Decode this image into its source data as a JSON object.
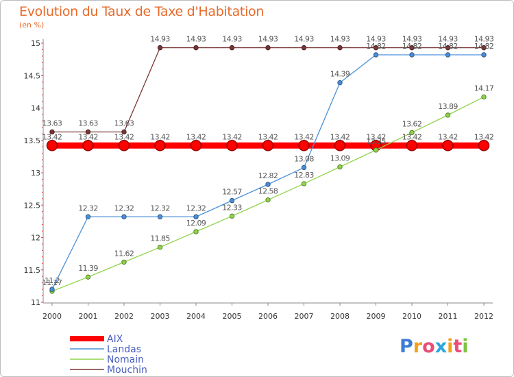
{
  "chart_data": {
    "type": "line",
    "title": "Evolution du Taux de Taxe d'Habitation",
    "unit_label": "(en %)",
    "x": [
      "2000",
      "2001",
      "2002",
      "2003",
      "2004",
      "2005",
      "2006",
      "2007",
      "2008",
      "2009",
      "2010",
      "2011",
      "2012"
    ],
    "ylim": [
      11,
      15
    ],
    "yticks": [
      "11",
      "11.5",
      "12",
      "12.5",
      "13",
      "13.5",
      "14",
      "14.5",
      "15"
    ],
    "grid": false,
    "legend_position": "bottom-left",
    "series": [
      {
        "name": "AIX",
        "color": "#ff0000",
        "values": [
          13.42,
          13.42,
          13.42,
          13.42,
          13.42,
          13.42,
          13.42,
          13.42,
          13.42,
          13.42,
          13.42,
          13.42,
          13.42
        ],
        "labels": [
          "13.42",
          "13.42",
          "13.42",
          "13.42",
          "13.42",
          "13.42",
          "13.42",
          "13.42",
          "13.42",
          "13.42",
          "13.42",
          "13.42",
          "13.42"
        ]
      },
      {
        "name": "Landas",
        "color": "#4a90d9",
        "values": [
          11.2,
          12.32,
          12.32,
          12.32,
          12.32,
          12.57,
          12.82,
          13.08,
          14.39,
          14.82,
          14.82,
          14.82,
          14.82
        ],
        "labels": [
          "11.2",
          "12.32",
          "12.32",
          "12.32",
          "12.32",
          "12.57",
          "12.82",
          "13.08",
          "14.39",
          "14.82",
          "14.82",
          "14.82",
          "14.82"
        ]
      },
      {
        "name": "Nomain",
        "color": "#8fd44a",
        "values": [
          11.17,
          11.39,
          11.62,
          11.85,
          12.09,
          12.33,
          12.58,
          12.83,
          13.09,
          13.35,
          13.62,
          13.89,
          14.17
        ],
        "labels": [
          "11.17",
          "11.39",
          "11.62",
          "11.85",
          "12.09",
          "12.33",
          "12.58",
          "12.83",
          "13.09",
          "13.35",
          "13.62",
          "13.89",
          "14.17"
        ]
      },
      {
        "name": "Mouchin",
        "color": "#7a3535",
        "values": [
          13.63,
          13.63,
          13.63,
          14.93,
          14.93,
          14.93,
          14.93,
          14.93,
          14.93,
          14.93,
          14.93,
          14.93,
          14.93
        ],
        "labels": [
          "13.63",
          "13.63",
          "13.63",
          "14.93",
          "14.93",
          "14.93",
          "14.93",
          "14.93",
          "14.93",
          "14.93",
          "14.93",
          "14.93",
          "14.93"
        ]
      }
    ]
  },
  "logo": {
    "text": "Proxiti",
    "letter_colors": [
      "#3a7bd5",
      "#f4a11a",
      "#e94e77",
      "#2aa7df",
      "#f4a11a",
      "#e94e77",
      "#7dc242"
    ]
  }
}
